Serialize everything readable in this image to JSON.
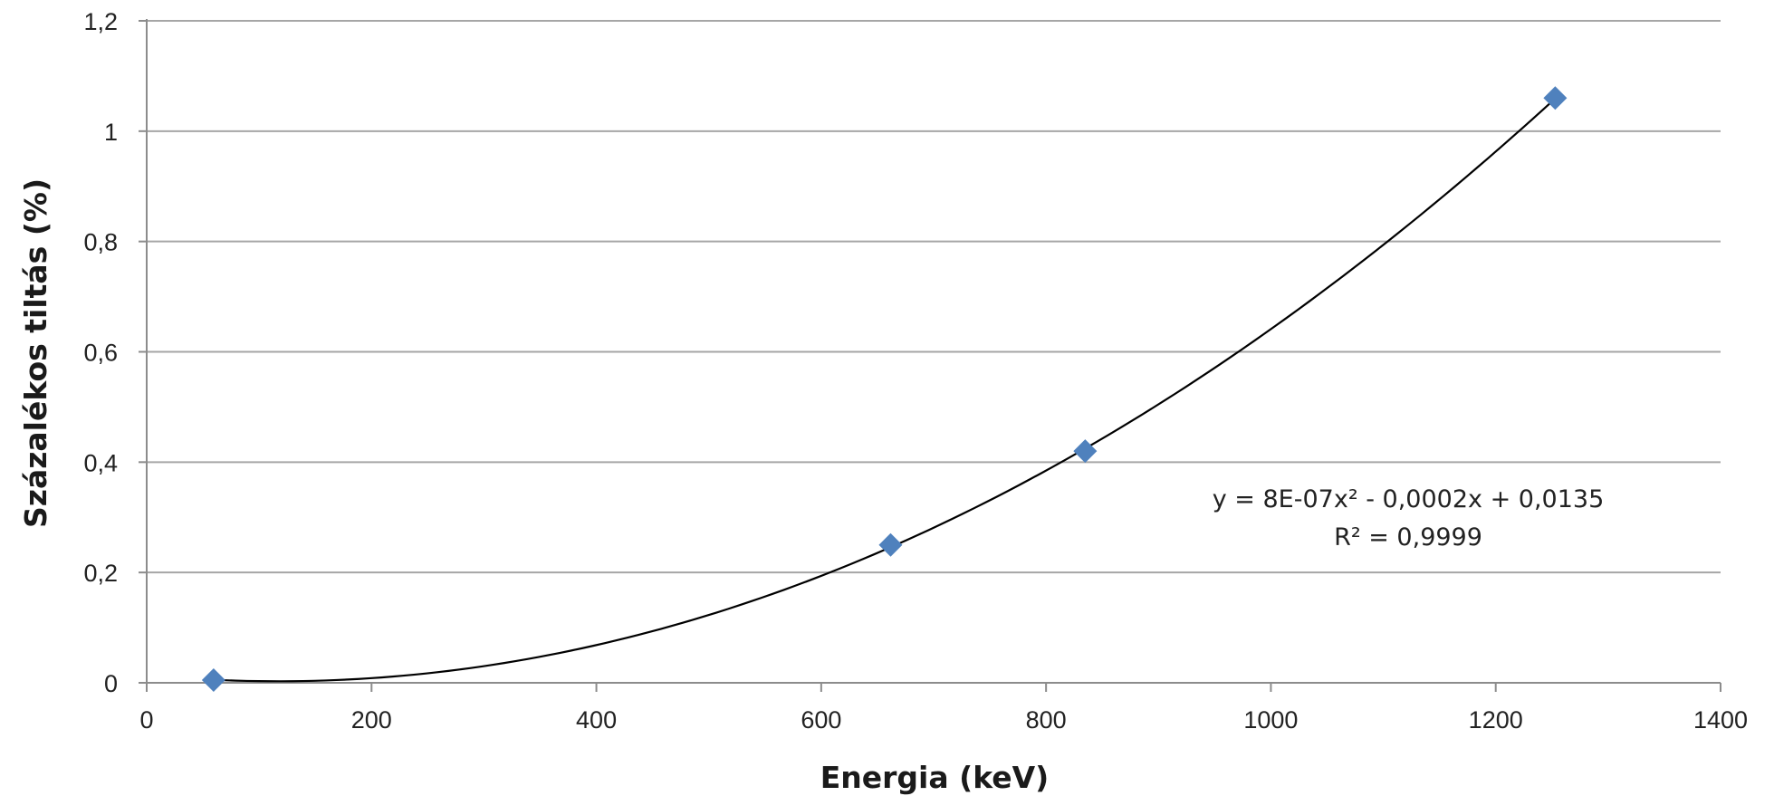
{
  "chart_data": {
    "type": "scatter",
    "title": "",
    "xlabel": "Energia (keV)",
    "ylabel": "Százalékos tiltás (%)",
    "xlim": [
      0,
      1400
    ],
    "ylim": [
      0,
      1.2
    ],
    "x_ticks": [
      0,
      200,
      400,
      600,
      800,
      1000,
      1200,
      1400
    ],
    "x_tick_labels": [
      "0",
      "200",
      "400",
      "600",
      "800",
      "1000",
      "1200",
      "1400"
    ],
    "y_ticks": [
      0,
      0.2,
      0.4,
      0.6,
      0.8,
      1,
      1.2
    ],
    "y_tick_labels": [
      "0",
      "0,2",
      "0,4",
      "0,6",
      "0,8",
      "1",
      "1,2"
    ],
    "grid": "horizontal",
    "legend": "none",
    "series": [
      {
        "marker": "diamond",
        "color": "#4f81bd",
        "points": [
          {
            "x": 59.5,
            "y": 0.005
          },
          {
            "x": 661.7,
            "y": 0.25
          },
          {
            "x": 834.8,
            "y": 0.42
          },
          {
            "x": 1252.9,
            "y": 1.06
          }
        ]
      }
    ],
    "trendline": {
      "type": "polynomial",
      "color": "#000000",
      "x_range": [
        59.5,
        1252.9
      ],
      "equation_label": "y = 8E-07x² - 0,0002x + 0,0135",
      "r2_label": "R² = 0,9999"
    }
  },
  "colors": {
    "grid": "#a6a6a6",
    "axis": "#8c8c8c",
    "marker": "#4f81bd",
    "trendline": "#000000"
  }
}
